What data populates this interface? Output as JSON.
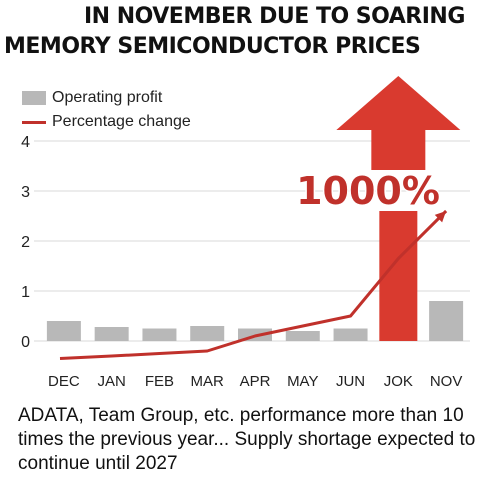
{
  "header": {
    "line1": "IN NOVEMBER DUE TO SOARING",
    "line2": "MEMORY SEMICONDUCTOR PRICES"
  },
  "legend": {
    "bar_label": "Operating profit",
    "line_label": "Percentage change"
  },
  "annotation": "1000%",
  "footer": {
    "text": "ADATA, Team Group, etc. performance more than 10 times the previous year... Supply shortage expected to continue until 2027"
  },
  "colors": {
    "bar": "#b8b8b8",
    "highlight_bar": "#d93a2f",
    "line": "#c0312b",
    "arrow": "#d93a2f",
    "grid": "#d9d9d9"
  },
  "chart_data": {
    "type": "bar",
    "categories": [
      "DEC",
      "JAN",
      "FEB",
      "MAR",
      "APR",
      "MAY",
      "JUN",
      "JOK",
      "NOV"
    ],
    "series": [
      {
        "name": "Operating profit",
        "type": "bar",
        "values": [
          0.4,
          0.28,
          0.25,
          0.3,
          0.25,
          0.2,
          0.25,
          2.6,
          0.8
        ]
      },
      {
        "name": "Percentage change",
        "type": "line",
        "values": [
          -0.35,
          -0.3,
          -0.25,
          -0.2,
          0.1,
          0.3,
          0.5,
          1.65,
          2.6
        ]
      }
    ],
    "highlight_index": 7,
    "yticks": [
      0,
      1,
      2,
      3,
      4
    ],
    "ylim": [
      -0.5,
      4
    ],
    "grid": true,
    "legend_position": "top-left"
  }
}
